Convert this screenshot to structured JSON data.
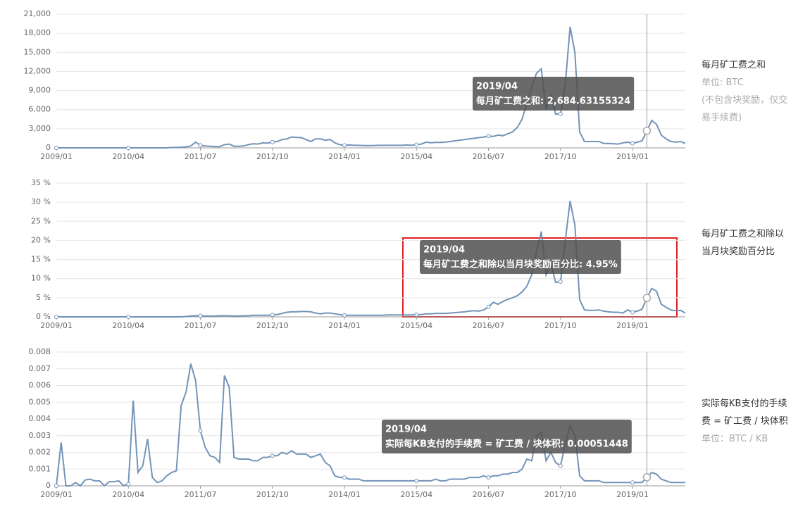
{
  "chart_data": [
    {
      "type": "line",
      "legend_title": "每月矿工费之和",
      "unit": "单位: BTC",
      "note": "(不包含块奖励，仅交易手续费)",
      "tooltip": {
        "date": "2019/04",
        "text": "每月矿工费之和: 2,684.63155324"
      },
      "color": "#7394b8",
      "categories": [
        "2009/01",
        null,
        null,
        null,
        null,
        null,
        null,
        null,
        null,
        null,
        null,
        null,
        null,
        null,
        null,
        "2010/04",
        null,
        null,
        null,
        null,
        null,
        null,
        null,
        null,
        null,
        null,
        null,
        null,
        null,
        null,
        "2011/07",
        null,
        null,
        null,
        null,
        null,
        null,
        null,
        null,
        null,
        null,
        null,
        null,
        null,
        null,
        "2012/10",
        null,
        null,
        null,
        null,
        null,
        null,
        null,
        null,
        null,
        null,
        null,
        null,
        null,
        null,
        "2014/01",
        null,
        null,
        null,
        null,
        null,
        null,
        null,
        null,
        null,
        null,
        null,
        null,
        null,
        null,
        "2015/04",
        null,
        null,
        null,
        null,
        null,
        null,
        null,
        null,
        null,
        null,
        null,
        null,
        null,
        null,
        "2016/07",
        null,
        null,
        null,
        null,
        null,
        null,
        null,
        null,
        null,
        null,
        null,
        null,
        null,
        null,
        "2017/10",
        null,
        null,
        null,
        null,
        null,
        null,
        null,
        null,
        null,
        null,
        null,
        null,
        null,
        null,
        "2019/01",
        null,
        null,
        null,
        null,
        null,
        null,
        null,
        null,
        null,
        null,
        null
      ],
      "values": [
        0,
        0,
        0,
        0,
        0,
        0,
        0,
        0,
        0,
        0,
        0,
        0,
        0,
        0,
        0,
        0,
        0,
        0,
        0,
        0,
        0,
        0,
        0,
        0,
        50,
        60,
        100,
        150,
        300,
        900,
        400,
        300,
        250,
        200,
        200,
        500,
        600,
        250,
        250,
        300,
        500,
        650,
        600,
        800,
        750,
        900,
        1000,
        1300,
        1400,
        1700,
        1650,
        1600,
        1300,
        1000,
        1400,
        1400,
        1200,
        1300,
        800,
        500,
        400,
        450,
        400,
        400,
        350,
        350,
        350,
        400,
        400,
        400,
        400,
        400,
        400,
        450,
        400,
        500,
        600,
        900,
        800,
        850,
        850,
        900,
        1000,
        1100,
        1200,
        1300,
        1400,
        1500,
        1600,
        1700,
        1850,
        1800,
        2000,
        1900,
        2200,
        2500,
        3200,
        4500,
        7000,
        9500,
        11700,
        12400,
        6000,
        8300,
        5300,
        5300,
        10000,
        19000,
        15000,
        2500,
        1000,
        1000,
        1000,
        1000,
        700,
        700,
        650,
        600,
        800,
        900,
        700,
        900,
        1100,
        2684.63155324,
        4300,
        3700,
        2000,
        1400,
        1000,
        900,
        1000,
        700
      ],
      "ylim": [
        0,
        21000
      ],
      "yticks": [
        0,
        {
          "value": 3000,
          "label": "3,000"
        },
        {
          "value": 6000,
          "label": "6,000"
        },
        {
          "value": 9000,
          "label": "9,000"
        },
        {
          "value": 12000,
          "label": "12,000"
        },
        {
          "value": 15000,
          "label": "15,000"
        },
        {
          "value": 18000,
          "label": "18,000"
        },
        {
          "value": 21000,
          "label": "21,000"
        }
      ],
      "grid": true
    },
    {
      "type": "line",
      "legend_title": "每月矿工费之和除以当月块奖励百分比",
      "tooltip": {
        "date": "2019/04",
        "text": "每月矿工费之和除以当月块奖励百分比: 4.95%"
      },
      "color": "#7394b8",
      "categories": [
        "2009/01",
        null,
        null,
        null,
        null,
        null,
        null,
        null,
        null,
        null,
        null,
        null,
        null,
        null,
        null,
        "2010/04",
        null,
        null,
        null,
        null,
        null,
        null,
        null,
        null,
        null,
        null,
        null,
        null,
        null,
        null,
        "2011/07",
        null,
        null,
        null,
        null,
        null,
        null,
        null,
        null,
        null,
        null,
        null,
        null,
        null,
        null,
        "2012/10",
        null,
        null,
        null,
        null,
        null,
        null,
        null,
        null,
        null,
        null,
        null,
        null,
        null,
        null,
        "2014/01",
        null,
        null,
        null,
        null,
        null,
        null,
        null,
        null,
        null,
        null,
        null,
        null,
        null,
        null,
        "2015/04",
        null,
        null,
        null,
        null,
        null,
        null,
        null,
        null,
        null,
        null,
        null,
        null,
        null,
        null,
        "2016/07",
        null,
        null,
        null,
        null,
        null,
        null,
        null,
        null,
        null,
        null,
        null,
        null,
        null,
        null,
        "2017/10",
        null,
        null,
        null,
        null,
        null,
        null,
        null,
        null,
        null,
        null,
        null,
        null,
        null,
        null,
        "2019/01",
        null,
        null,
        null,
        null,
        null,
        null,
        null,
        null,
        null,
        null,
        null
      ],
      "values": [
        0,
        0,
        0,
        0,
        0,
        0,
        0,
        0,
        0,
        0,
        0,
        0,
        0,
        0,
        0,
        0,
        0,
        0,
        0,
        0,
        0,
        0,
        0,
        0,
        0,
        0,
        0,
        0.1,
        0.2,
        0.3,
        0.3,
        0.2,
        0.2,
        0.2,
        0.3,
        0.3,
        0.3,
        0.2,
        0.2,
        0.3,
        0.3,
        0.4,
        0.4,
        0.4,
        0.4,
        0.5,
        0.6,
        0.9,
        1.2,
        1.3,
        1.3,
        1.4,
        1.4,
        1.3,
        1.0,
        0.8,
        1.0,
        1.0,
        0.8,
        0.6,
        0.4,
        0.4,
        0.4,
        0.4,
        0.4,
        0.4,
        0.4,
        0.4,
        0.4,
        0.5,
        0.5,
        0.5,
        0.5,
        0.5,
        0.5,
        0.6,
        0.6,
        0.8,
        0.8,
        0.9,
        0.9,
        0.9,
        1.0,
        1.1,
        1.2,
        1.3,
        1.5,
        1.6,
        1.5,
        1.8,
        2.6,
        3.8,
        3.3,
        4.0,
        4.6,
        5.0,
        5.5,
        6.5,
        8.0,
        11,
        17,
        22.3,
        11,
        14,
        9,
        9.2,
        20,
        30.3,
        24,
        4.5,
        1.8,
        1.7,
        1.7,
        1.8,
        1.5,
        1.3,
        1.2,
        1.2,
        1.0,
        1.8,
        1.2,
        1.5,
        2.0,
        4.95,
        7.4,
        6.7,
        3.3,
        2.5,
        1.8,
        1.6,
        1.7,
        1.0
      ],
      "ylim": [
        0,
        35
      ],
      "yticks": [
        {
          "value": 0,
          "label": "0 %"
        },
        {
          "value": 5,
          "label": "5 %"
        },
        {
          "value": 10,
          "label": "10 %"
        },
        {
          "value": 15,
          "label": "15 %"
        },
        {
          "value": 20,
          "label": "20 %"
        },
        {
          "value": 25,
          "label": "25 %"
        },
        {
          "value": 30,
          "label": "30 %"
        },
        {
          "value": 35,
          "label": "35 %"
        }
      ],
      "grid": true
    },
    {
      "type": "line",
      "legend_title": "实际每KB支付的手续费 = 矿工费 / 块体积",
      "unit": "单位：BTC / KB",
      "tooltip": {
        "date": "2019/04",
        "text": "实际每KB支付的手续费 = 矿工费 / 块体积: 0.00051448"
      },
      "color": "#7394b8",
      "categories": [
        "2009/01",
        null,
        null,
        null,
        null,
        null,
        null,
        null,
        null,
        null,
        null,
        null,
        null,
        null,
        null,
        "2010/04",
        null,
        null,
        null,
        null,
        null,
        null,
        null,
        null,
        null,
        null,
        null,
        null,
        null,
        null,
        "2011/07",
        null,
        null,
        null,
        null,
        null,
        null,
        null,
        null,
        null,
        null,
        null,
        null,
        null,
        null,
        "2012/10",
        null,
        null,
        null,
        null,
        null,
        null,
        null,
        null,
        null,
        null,
        null,
        null,
        null,
        null,
        "2014/01",
        null,
        null,
        null,
        null,
        null,
        null,
        null,
        null,
        null,
        null,
        null,
        null,
        null,
        null,
        "2015/04",
        null,
        null,
        null,
        null,
        null,
        null,
        null,
        null,
        null,
        null,
        null,
        null,
        null,
        null,
        "2016/07",
        null,
        null,
        null,
        null,
        null,
        null,
        null,
        null,
        null,
        null,
        null,
        null,
        null,
        null,
        "2017/10",
        null,
        null,
        null,
        null,
        null,
        null,
        null,
        null,
        null,
        null,
        null,
        null,
        null,
        null,
        "2019/01",
        null,
        null,
        null,
        null,
        null,
        null,
        null,
        null,
        null,
        null,
        null
      ],
      "values": [
        0,
        0.0026,
        0,
        0,
        0.0002,
        0,
        0.00035,
        0.0004,
        0.0003,
        0.0003,
        0,
        0.00025,
        0.00025,
        0.0003,
        0,
        0.0001,
        0.0051,
        0.0008,
        0.0012,
        0.0028,
        0.0005,
        0.0002,
        0.0003,
        0.0006,
        0.0008,
        0.0009,
        0.0048,
        0.0056,
        0.0073,
        0.0063,
        0.0033,
        0.0023,
        0.0018,
        0.0017,
        0.0014,
        0.0066,
        0.0059,
        0.0017,
        0.0016,
        0.0016,
        0.0016,
        0.0015,
        0.0015,
        0.0017,
        0.0017,
        0.0018,
        0.0018,
        0.002,
        0.0019,
        0.0021,
        0.0019,
        0.0019,
        0.0019,
        0.0017,
        0.0018,
        0.0019,
        0.0014,
        0.0012,
        0.0006,
        0.0005,
        0.0005,
        0.0004,
        0.0004,
        0.0004,
        0.0003,
        0.0003,
        0.0003,
        0.0003,
        0.0003,
        0.0003,
        0.0003,
        0.0003,
        0.0003,
        0.0003,
        0.0003,
        0.0003,
        0.0003,
        0.0003,
        0.0003,
        0.0004,
        0.0003,
        0.0003,
        0.0004,
        0.0004,
        0.0004,
        0.0004,
        0.0005,
        0.0005,
        0.0005,
        0.0006,
        0.0005,
        0.0006,
        0.0006,
        0.0007,
        0.0007,
        0.0008,
        0.0008,
        0.001,
        0.0016,
        0.0015,
        0.003,
        0.0032,
        0.0015,
        0.002,
        0.0014,
        0.0012,
        0.0025,
        0.0036,
        0.003,
        0.0006,
        0.0003,
        0.0003,
        0.0003,
        0.0003,
        0.0002,
        0.0002,
        0.0002,
        0.0002,
        0.0002,
        0.0002,
        0.0002,
        0.0002,
        0.0002,
        0.00051448,
        0.0008,
        0.0007,
        0.0004,
        0.0003,
        0.0002,
        0.0002,
        0.0002,
        0.0002
      ],
      "ylim": [
        0,
        0.008
      ],
      "yticks": [
        0,
        0.001,
        0.002,
        0.003,
        0.004,
        0.005,
        0.006,
        0.007,
        0.008
      ],
      "grid": true
    }
  ]
}
